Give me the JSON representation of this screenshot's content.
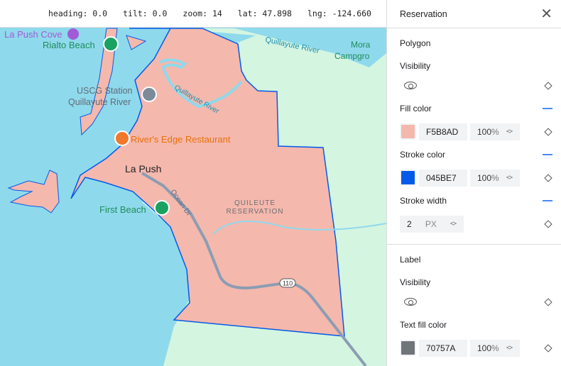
{
  "status": {
    "heading": "heading: 0.0",
    "tilt": "tilt: 0.0",
    "zoom": "zoom: 14",
    "lat": "lat: 47.898",
    "lng": "lng: -124.660"
  },
  "map": {
    "labels": {
      "la_push_cove": "La Push Cove",
      "rialto": "Rialto Beach",
      "uscg1": "USCG Station",
      "uscg2": "Quillayute River",
      "rivers_edge": "River's Edge Restaurant",
      "la_push": "La Push",
      "first_beach": "First Beach",
      "reservation1": "QUILEUTE",
      "reservation2": "RESERVATION",
      "ocean_dr": "Ocean Dr",
      "river1": "Quillayute River",
      "river2": "Quillayute River",
      "mora1": "Mora",
      "mora2": "Campgro",
      "route": "110"
    },
    "colors": {
      "water": "#8fd9ec",
      "land": "#d4f5e0",
      "polygon_fill": "#F5B8AD",
      "polygon_stroke": "#045BE7",
      "road": "#8b9db3"
    }
  },
  "panel": {
    "title": "Reservation",
    "polygon": {
      "title": "Polygon",
      "visibility": "Visibility",
      "fill_label": "Fill color",
      "fill_hex": "F5B8AD",
      "fill_color": "#F5B8AD",
      "fill_opacity": "100",
      "stroke_label": "Stroke color",
      "stroke_hex": "045BE7",
      "stroke_color": "#045BE7",
      "stroke_opacity": "100",
      "width_label": "Stroke width",
      "width_value": "2",
      "width_unit": "PX"
    },
    "label": {
      "title": "Label",
      "visibility": "Visibility",
      "text_fill_label": "Text fill color",
      "text_fill_hex": "70757A",
      "text_fill_color": "#70757A",
      "text_fill_opacity": "100"
    },
    "pct": "%"
  }
}
